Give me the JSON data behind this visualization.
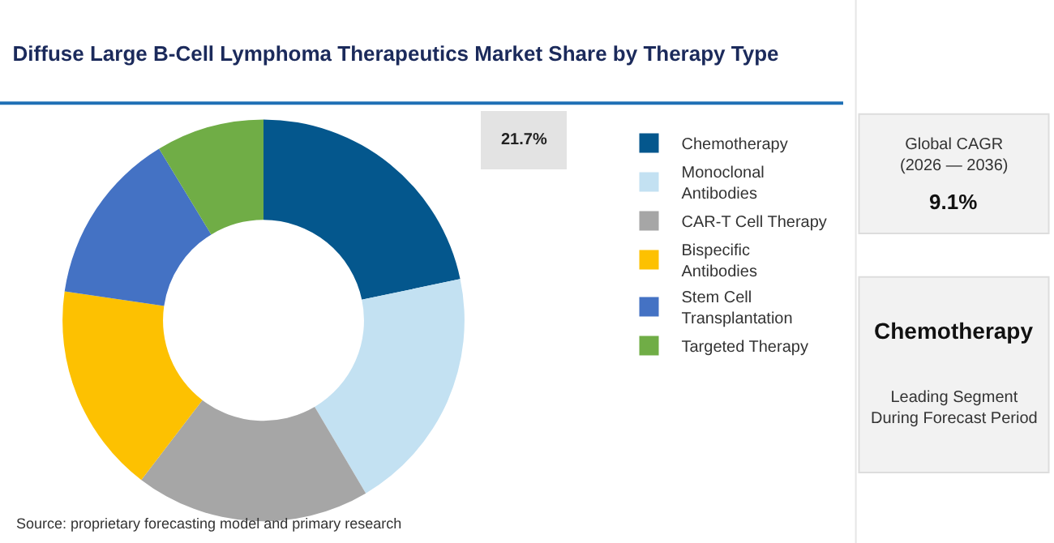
{
  "chart_data": {
    "type": "donut",
    "title": "Diffuse Large B-Cell Lymphoma Therapeutics Market Share by Therapy Type",
    "categories": [
      "Chemotherapy",
      "Monoclonal Antibodies",
      "CAR-T Cell Therapy",
      "Bispecific Antibodies",
      "Stem Cell Transplantation",
      "Targeted Therapy"
    ],
    "values": [
      21.7,
      19.8,
      18.9,
      16.9,
      14.0,
      8.7
    ],
    "colors": [
      "#04578d",
      "#c3e1f2",
      "#a6a6a6",
      "#fdc101",
      "#4472c4",
      "#70ad46"
    ],
    "value_labels": [
      "21.7%",
      null,
      null,
      null,
      null,
      null
    ],
    "legend": "right",
    "annotations": [
      "Source: proprietary forecasting model and primary research",
      "Global CAGR\n(2026 — 2036)",
      "9.1%",
      "Chemotherapy",
      "Leading Segment\nDuring Forecast Period"
    ]
  }
}
